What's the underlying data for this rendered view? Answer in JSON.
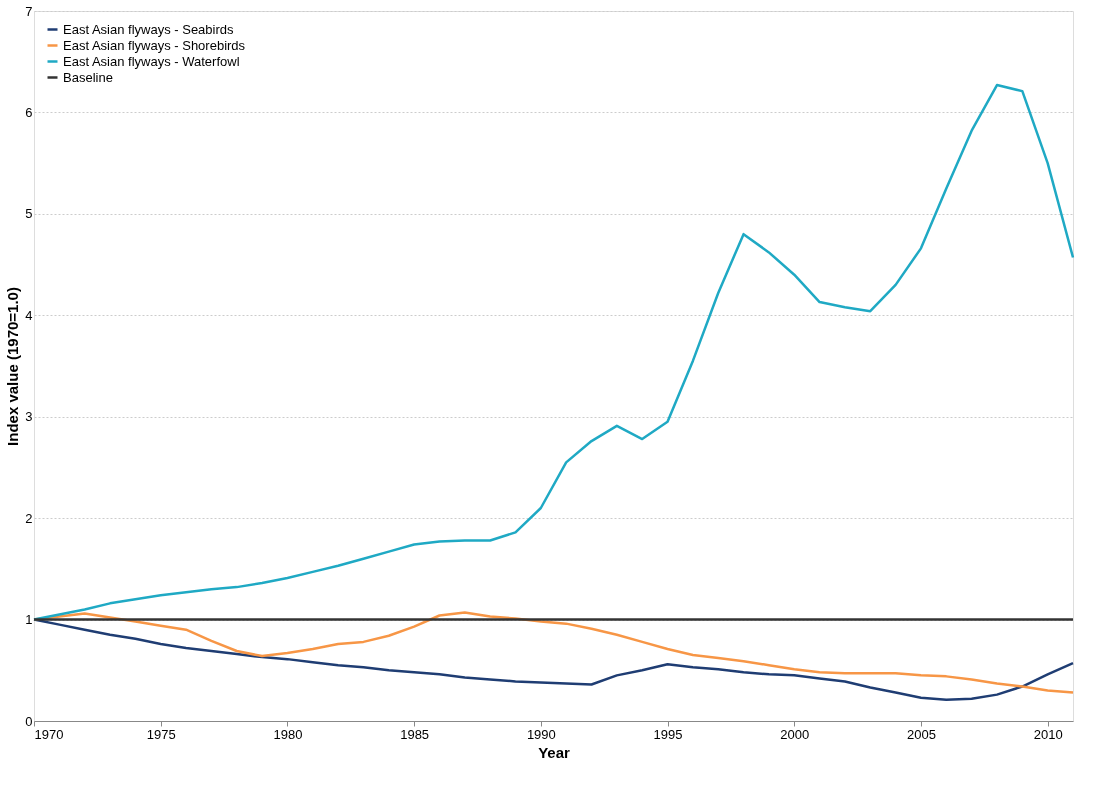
{
  "chart_data": {
    "type": "line",
    "xlabel": "Year",
    "ylabel": "Index value (1970=1.0)",
    "x": [
      1970,
      1971,
      1972,
      1973,
      1974,
      1975,
      1976,
      1977,
      1978,
      1979,
      1980,
      1981,
      1982,
      1983,
      1984,
      1985,
      1986,
      1987,
      1988,
      1989,
      1990,
      1991,
      1992,
      1993,
      1994,
      1995,
      1996,
      1997,
      1998,
      1999,
      2000,
      2001,
      2002,
      2003,
      2004,
      2005,
      2006,
      2007,
      2008,
      2009,
      2010,
      2011
    ],
    "series": [
      {
        "name": "East Asian flyways - Seabirds",
        "color": "#1f3d73",
        "values": [
          1.0,
          0.95,
          0.9,
          0.85,
          0.81,
          0.76,
          0.72,
          0.69,
          0.66,
          0.63,
          0.61,
          0.58,
          0.55,
          0.53,
          0.5,
          0.48,
          0.46,
          0.43,
          0.41,
          0.39,
          0.38,
          0.37,
          0.36,
          0.45,
          0.5,
          0.56,
          0.53,
          0.51,
          0.48,
          0.46,
          0.45,
          0.42,
          0.39,
          0.33,
          0.28,
          0.23,
          0.21,
          0.22,
          0.26,
          0.34,
          0.46,
          0.57
        ]
      },
      {
        "name": "East Asian flyways - Shorebirds",
        "color": "#f79646",
        "values": [
          1.0,
          1.03,
          1.06,
          1.02,
          0.98,
          0.94,
          0.9,
          0.79,
          0.69,
          0.64,
          0.67,
          0.71,
          0.76,
          0.78,
          0.84,
          0.93,
          1.04,
          1.07,
          1.03,
          1.01,
          0.98,
          0.96,
          0.91,
          0.85,
          0.78,
          0.71,
          0.65,
          0.62,
          0.59,
          0.55,
          0.51,
          0.48,
          0.47,
          0.47,
          0.47,
          0.45,
          0.44,
          0.41,
          0.37,
          0.34,
          0.3,
          0.28
        ]
      },
      {
        "name": "East Asian flyways - Waterfowl",
        "color": "#1fa9c4",
        "values": [
          1.0,
          1.05,
          1.1,
          1.16,
          1.2,
          1.24,
          1.27,
          1.3,
          1.32,
          1.36,
          1.41,
          1.47,
          1.53,
          1.6,
          1.67,
          1.74,
          1.77,
          1.78,
          1.78,
          1.86,
          2.1,
          2.55,
          2.76,
          2.91,
          2.78,
          2.95,
          3.55,
          4.22,
          4.8,
          4.62,
          4.4,
          4.13,
          4.08,
          4.04,
          4.3,
          4.66,
          5.25,
          5.82,
          6.27,
          6.21,
          5.5,
          4.57
        ]
      },
      {
        "name": "Baseline",
        "color": "#333333",
        "x": [
          1970,
          2011
        ],
        "values": [
          1,
          1
        ]
      }
    ],
    "xlim": [
      1970,
      2011
    ],
    "xticks": [
      1970,
      1975,
      1980,
      1985,
      1990,
      1995,
      2000,
      2005,
      2010
    ],
    "ylim": [
      0,
      7
    ],
    "yticks": [
      0,
      1,
      2,
      3,
      4,
      5,
      6,
      7
    ],
    "grid": "y",
    "legend": "top left",
    "marker": "none",
    "line_style": "solid"
  }
}
